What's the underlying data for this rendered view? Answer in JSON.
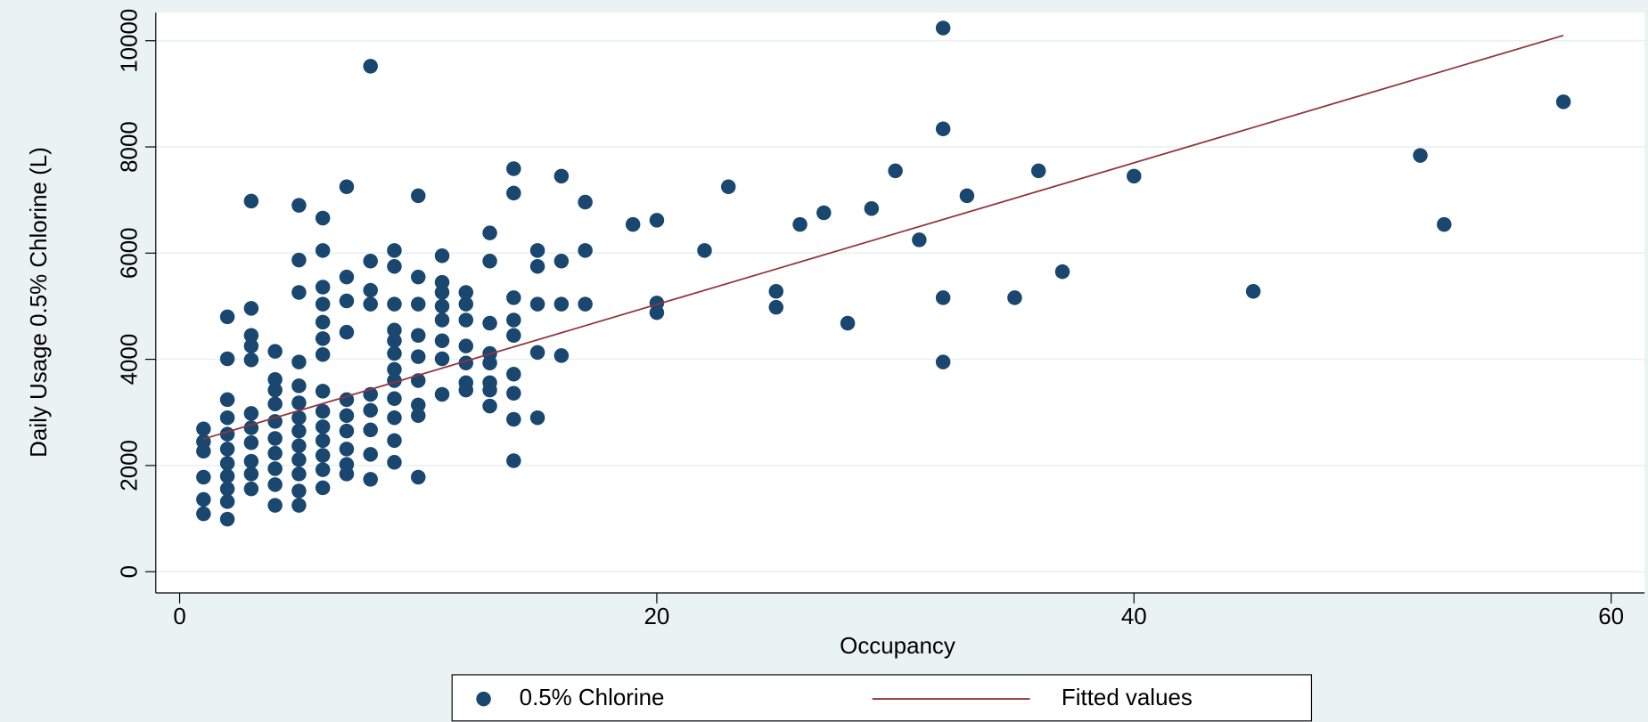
{
  "chart_data": {
    "type": "scatter",
    "xlabel": "Occupancy",
    "ylabel": "Daily Usage 0.5% Chlorine (L)",
    "xlim": [
      -1,
      61.4
    ],
    "ylim": [
      -400,
      10530
    ],
    "xticks": [
      0,
      20,
      40,
      60
    ],
    "yticks": [
      0,
      2000,
      4000,
      6000,
      8000,
      10000
    ],
    "grid": true,
    "legend": "bottom",
    "series": [
      {
        "name": "0.5% Chlorine",
        "color": "#1a476f",
        "mark": "point",
        "x": [
          32,
          8,
          58,
          52,
          53,
          45,
          40,
          36,
          37,
          35,
          33,
          32,
          32,
          32,
          31,
          30,
          29,
          28,
          27,
          26,
          25,
          25,
          23,
          22,
          20,
          20,
          20,
          19,
          17,
          17,
          17,
          16,
          16,
          16,
          16,
          15,
          15,
          15,
          15,
          15,
          14,
          14,
          14,
          14,
          14,
          14,
          14,
          14,
          14,
          13,
          13,
          13,
          13,
          13,
          13,
          13,
          13,
          12,
          12,
          12,
          12,
          12,
          12,
          12,
          11,
          11,
          11,
          11,
          11,
          11,
          11,
          11,
          10,
          10,
          10,
          10,
          10,
          10,
          10,
          10,
          10,
          9,
          9,
          9,
          9,
          9,
          9,
          9,
          9,
          9,
          9,
          9,
          9,
          8,
          8,
          8,
          8,
          8,
          8,
          8,
          8,
          7,
          7,
          7,
          7,
          7,
          7,
          7,
          7,
          7,
          7,
          6,
          6,
          6,
          6,
          6,
          6,
          6,
          6,
          6,
          6,
          6,
          6,
          6,
          6,
          5,
          5,
          5,
          5,
          5,
          5,
          5,
          5,
          5,
          5,
          5,
          5,
          5,
          4,
          4,
          4,
          4,
          4,
          4,
          4,
          4,
          4,
          4,
          3,
          3,
          3,
          3,
          3,
          3,
          3,
          3,
          3,
          3,
          3,
          2,
          2,
          2,
          2,
          2,
          2,
          2,
          2,
          2,
          2,
          2,
          1,
          1,
          1,
          1,
          1,
          1
        ],
        "values": [
          10240,
          9520,
          8850,
          7840,
          6540,
          5280,
          7450,
          7550,
          5650,
          5160,
          7080,
          8340,
          5160,
          3950,
          6250,
          7550,
          6840,
          4680,
          6760,
          6540,
          5280,
          4980,
          7250,
          6050,
          6620,
          5060,
          4880,
          6540,
          6960,
          6050,
          5040,
          7450,
          5850,
          5040,
          4070,
          6050,
          5750,
          5040,
          4130,
          2900,
          7590,
          7130,
          5160,
          4740,
          4450,
          3720,
          3360,
          2870,
          2090,
          6380,
          5850,
          4680,
          4110,
          3930,
          3560,
          3420,
          3120,
          5260,
          5040,
          4740,
          4250,
          3930,
          3560,
          3420,
          5950,
          5450,
          5260,
          5000,
          4740,
          4350,
          4010,
          3340,
          7080,
          5550,
          5040,
          4450,
          4050,
          3600,
          3140,
          2940,
          1780,
          6050,
          5750,
          5040,
          4550,
          4350,
          4110,
          3810,
          3600,
          3260,
          2900,
          2470,
          2060,
          5850,
          5300,
          5040,
          3340,
          3040,
          2670,
          2210,
          1740,
          7250,
          5550,
          5100,
          4510,
          3240,
          2940,
          2650,
          2310,
          2020,
          1840,
          6660,
          6050,
          5360,
          5040,
          4700,
          4390,
          4090,
          3400,
          3020,
          2730,
          2470,
          2190,
          1920,
          1580,
          6900,
          5870,
          5260,
          3950,
          3500,
          3180,
          2900,
          2650,
          2370,
          2110,
          1840,
          1520,
          1250,
          4150,
          3620,
          3420,
          3160,
          2830,
          2510,
          2230,
          1940,
          1640,
          1250,
          6980,
          4960,
          4450,
          4250,
          3990,
          2980,
          2710,
          2430,
          2080,
          1840,
          1560,
          4800,
          4010,
          3240,
          2900,
          2590,
          2310,
          2040,
          1800,
          1560,
          1320,
          990,
          2690,
          2450,
          2270,
          1780,
          1360,
          1090
        ]
      },
      {
        "name": "Fitted values",
        "color": "#90353b",
        "mark": "line",
        "x": [
          1,
          58
        ],
        "values": [
          2500,
          10100
        ]
      }
    ]
  }
}
